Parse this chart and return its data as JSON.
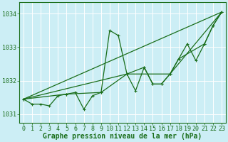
{
  "background_color": "#cceef5",
  "grid_color": "#ffffff",
  "line_color": "#1a6e1a",
  "xlabel": "Graphe pression niveau de la mer (hPa)",
  "xlabel_fontsize": 7,
  "tick_fontsize": 6,
  "xmin": -0.5,
  "xmax": 23.5,
  "ymin": 1030.75,
  "ymax": 1034.35,
  "yticks": [
    1031,
    1032,
    1033,
    1034
  ],
  "xticks": [
    0,
    1,
    2,
    3,
    4,
    5,
    6,
    7,
    8,
    9,
    10,
    11,
    12,
    13,
    14,
    15,
    16,
    17,
    18,
    19,
    20,
    21,
    22,
    23
  ],
  "series": [
    {
      "x": [
        0,
        1,
        2,
        3,
        4,
        5,
        6,
        7,
        8,
        9,
        10,
        11,
        12,
        13,
        14,
        15,
        16,
        17,
        18,
        19,
        20,
        21,
        22,
        23
      ],
      "y": [
        1031.45,
        1031.3,
        1031.3,
        1031.25,
        1031.55,
        1031.6,
        1031.65,
        1031.15,
        1031.55,
        1031.65,
        1033.5,
        1033.35,
        1032.2,
        1031.7,
        1032.4,
        1031.9,
        1031.9,
        1032.2,
        1032.65,
        1033.1,
        1032.6,
        1033.1,
        1033.65,
        1034.05
      ],
      "marker": true,
      "lw": 0.9
    },
    {
      "x": [
        0,
        5,
        9,
        12,
        14,
        15,
        16,
        17,
        18,
        21,
        22,
        23
      ],
      "y": [
        1031.45,
        1031.6,
        1031.65,
        1032.2,
        1032.4,
        1031.9,
        1031.9,
        1032.2,
        1032.65,
        1033.1,
        1033.65,
        1034.05
      ],
      "marker": true,
      "lw": 0.9
    },
    {
      "x": [
        0,
        23
      ],
      "y": [
        1031.45,
        1034.05
      ],
      "marker": false,
      "lw": 0.9
    },
    {
      "x": [
        0,
        12,
        17,
        23
      ],
      "y": [
        1031.45,
        1032.2,
        1032.2,
        1034.05
      ],
      "marker": false,
      "lw": 0.9
    }
  ]
}
